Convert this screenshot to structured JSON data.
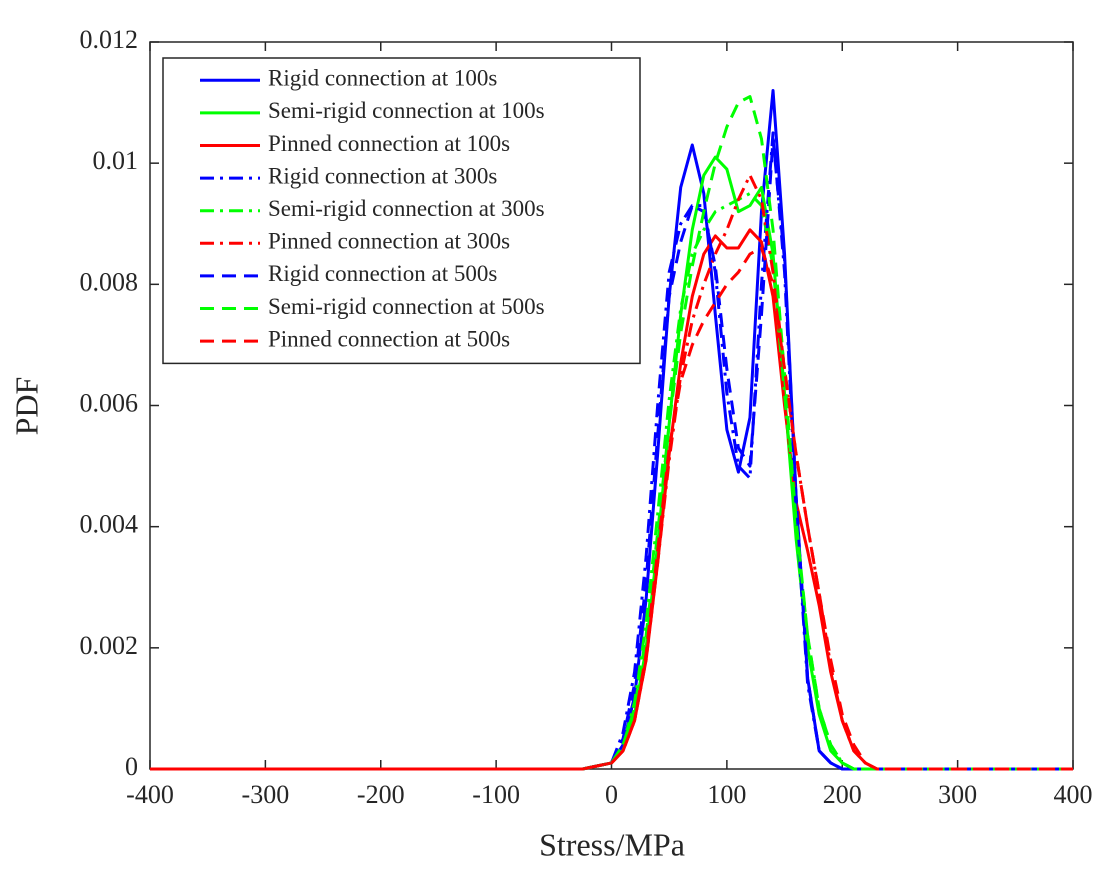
{
  "chart_data": {
    "type": "line",
    "xlabel": "Stress/MPa",
    "ylabel": "PDF",
    "x": [
      -400,
      -50,
      -25,
      0,
      10,
      20,
      30,
      40,
      50,
      60,
      70,
      80,
      90,
      100,
      110,
      120,
      130,
      140,
      150,
      160,
      170,
      180,
      190,
      200,
      210,
      220,
      230,
      250,
      400
    ],
    "xlim": [
      -400,
      400
    ],
    "xticks": [
      -400,
      -300,
      -200,
      -100,
      0,
      100,
      200,
      300,
      400
    ],
    "ylim": [
      0,
      0.012
    ],
    "yticks": [
      0,
      0.002,
      0.004,
      0.006,
      0.008,
      0.01,
      0.012
    ],
    "legend": "upper left",
    "series": [
      {
        "name": "Rigid connection at 100s",
        "color": "#0000ff",
        "dash": "solid",
        "values": [
          0,
          0,
          0,
          0.0001,
          0.0004,
          0.0012,
          0.0028,
          0.0052,
          0.0078,
          0.0096,
          0.0103,
          0.0095,
          0.0075,
          0.0056,
          0.0049,
          0.0058,
          0.0092,
          0.0112,
          0.0085,
          0.0045,
          0.0015,
          0.0003,
          0.0001,
          0,
          0,
          0,
          0,
          0,
          0
        ]
      },
      {
        "name": "Semi-rigid connection at 100s",
        "color": "#00ff00",
        "dash": "solid",
        "values": [
          0,
          0,
          0,
          0.0001,
          0.0003,
          0.0009,
          0.002,
          0.0037,
          0.0057,
          0.0075,
          0.0089,
          0.0098,
          0.0101,
          0.0099,
          0.0092,
          0.0093,
          0.0096,
          0.0085,
          0.0062,
          0.0038,
          0.002,
          0.0009,
          0.0003,
          0.0001,
          0,
          0,
          0,
          0,
          0
        ]
      },
      {
        "name": "Pinned connection at 100s",
        "color": "#ff0000",
        "dash": "solid",
        "values": [
          0,
          0,
          0,
          0.0001,
          0.0003,
          0.0008,
          0.0018,
          0.0034,
          0.0052,
          0.0067,
          0.0078,
          0.0085,
          0.0088,
          0.0086,
          0.0086,
          0.0089,
          0.0087,
          0.0078,
          0.006,
          0.0044,
          0.0036,
          0.0027,
          0.0016,
          0.0008,
          0.0003,
          0.0001,
          0,
          0,
          0
        ]
      },
      {
        "name": "Rigid connection at 300s",
        "color": "#0000ff",
        "dash": "dashdot",
        "values": [
          0,
          0,
          0,
          0.0001,
          0.0006,
          0.0016,
          0.0035,
          0.006,
          0.0082,
          0.009,
          0.0093,
          0.0093,
          0.0082,
          0.0062,
          0.005,
          0.0048,
          0.008,
          0.0105,
          0.0082,
          0.0043,
          0.0014,
          0.0003,
          0.0001,
          0,
          0,
          0,
          0,
          0,
          0
        ]
      },
      {
        "name": "Semi-rigid connection at 300s",
        "color": "#00ff00",
        "dash": "dashdot",
        "values": [
          0,
          0,
          0,
          0.0001,
          0.0004,
          0.0011,
          0.0024,
          0.0042,
          0.0061,
          0.0076,
          0.0085,
          0.0089,
          0.0092,
          0.0093,
          0.0094,
          0.0095,
          0.0093,
          0.0083,
          0.0062,
          0.004,
          0.0022,
          0.001,
          0.0004,
          0.0001,
          0,
          0,
          0,
          0,
          0
        ]
      },
      {
        "name": "Pinned connection at 300s",
        "color": "#ff0000",
        "dash": "dashdot",
        "values": [
          0,
          0,
          0,
          0.0001,
          0.0003,
          0.0008,
          0.0018,
          0.0034,
          0.0051,
          0.0065,
          0.0074,
          0.008,
          0.0085,
          0.0089,
          0.0094,
          0.0098,
          0.0094,
          0.0082,
          0.0066,
          0.0052,
          0.004,
          0.0029,
          0.0017,
          0.0008,
          0.0003,
          0.0001,
          0,
          0,
          0
        ]
      },
      {
        "name": "Rigid connection at 500s",
        "color": "#0000ff",
        "dash": "dashed",
        "values": [
          0,
          0,
          0,
          0.0001,
          0.0005,
          0.0014,
          0.0031,
          0.0055,
          0.0078,
          0.0087,
          0.0093,
          0.0092,
          0.0083,
          0.0066,
          0.0053,
          0.005,
          0.0075,
          0.0104,
          0.0084,
          0.0045,
          0.0015,
          0.0003,
          0.0001,
          0,
          0,
          0,
          0,
          0,
          0
        ]
      },
      {
        "name": "Semi-rigid connection at 500s",
        "color": "#00ff00",
        "dash": "dashed",
        "values": [
          0,
          0,
          0,
          0.0001,
          0.0004,
          0.001,
          0.0022,
          0.0039,
          0.0057,
          0.0072,
          0.0083,
          0.0092,
          0.01,
          0.0106,
          0.011,
          0.0111,
          0.0104,
          0.0089,
          0.0065,
          0.0041,
          0.0022,
          0.001,
          0.0004,
          0.0001,
          0,
          0,
          0,
          0,
          0
        ]
      },
      {
        "name": "Pinned connection at 500s",
        "color": "#ff0000",
        "dash": "dashed",
        "values": [
          0,
          0,
          0,
          0.0001,
          0.0003,
          0.0008,
          0.0019,
          0.0036,
          0.0053,
          0.0064,
          0.007,
          0.0074,
          0.0077,
          0.008,
          0.0082,
          0.0085,
          0.0086,
          0.008,
          0.0066,
          0.0052,
          0.004,
          0.0029,
          0.0018,
          0.0009,
          0.0004,
          0.0001,
          0,
          0,
          0
        ]
      }
    ]
  }
}
